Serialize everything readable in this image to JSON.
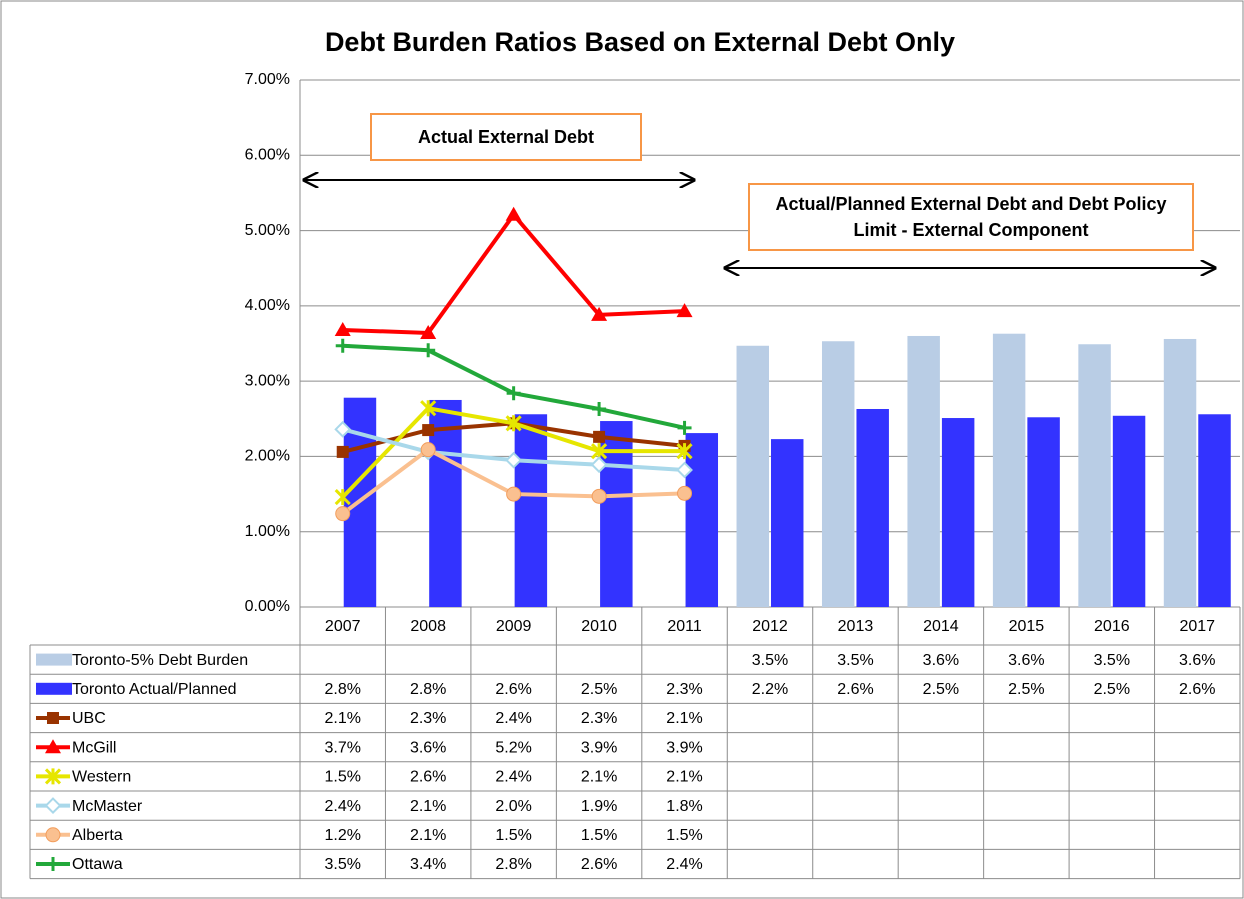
{
  "chart_data": {
    "type": "bar",
    "title": "Debt Burden Ratios Based on External Debt Only",
    "annotations": [
      "Actual External Debt",
      "Actual/Planned External Debt and Debt Policy Limit - External  Component"
    ],
    "categories": [
      "2007",
      "2008",
      "2009",
      "2010",
      "2011",
      "2012",
      "2013",
      "2014",
      "2015",
      "2016",
      "2017"
    ],
    "ylim": [
      0,
      7
    ],
    "yticks": [
      {
        "value": 0,
        "label": "0.00%"
      },
      {
        "value": 1,
        "label": "1.00%"
      },
      {
        "value": 2,
        "label": "2.00%"
      },
      {
        "value": 3,
        "label": "3.00%"
      },
      {
        "value": 4,
        "label": "4.00%"
      },
      {
        "value": 5,
        "label": "5.00%"
      },
      {
        "value": 6,
        "label": "6.00%"
      },
      {
        "value": 7,
        "label": "7.00%"
      }
    ],
    "grid": true,
    "series": [
      {
        "name": "Toronto-5% Debt Burden",
        "type": "bar",
        "color": "#b9cde5",
        "values": [
          null,
          null,
          null,
          null,
          null,
          3.47,
          3.53,
          3.6,
          3.63,
          3.49,
          3.56
        ],
        "value_labels": [
          null,
          null,
          null,
          null,
          null,
          "3.5%",
          "3.5%",
          "3.6%",
          "3.6%",
          "3.5%",
          "3.6%"
        ]
      },
      {
        "name": "Toronto Actual/Planned",
        "type": "bar",
        "color": "#3333ff",
        "values": [
          2.78,
          2.75,
          2.56,
          2.47,
          2.31,
          2.23,
          2.63,
          2.51,
          2.52,
          2.54,
          2.56
        ],
        "value_labels": [
          "2.8%",
          "2.8%",
          "2.6%",
          "2.5%",
          "2.3%",
          "2.2%",
          "2.6%",
          "2.5%",
          "2.5%",
          "2.5%",
          "2.6%"
        ]
      },
      {
        "name": "UBC",
        "type": "line",
        "marker": "square",
        "color": "#993300",
        "values": [
          2.06,
          2.35,
          2.44,
          2.26,
          2.14,
          null,
          null,
          null,
          null,
          null,
          null
        ],
        "value_labels": [
          "2.1%",
          "2.3%",
          "2.4%",
          "2.3%",
          "2.1%",
          null,
          null,
          null,
          null,
          null,
          null
        ]
      },
      {
        "name": "McGill",
        "type": "line",
        "marker": "triangle",
        "color": "#ff0000",
        "values": [
          3.68,
          3.64,
          5.21,
          3.88,
          3.93,
          null,
          null,
          null,
          null,
          null,
          null
        ],
        "value_labels": [
          "3.7%",
          "3.6%",
          "5.2%",
          "3.9%",
          "3.9%",
          null,
          null,
          null,
          null,
          null,
          null
        ]
      },
      {
        "name": "Western",
        "type": "line",
        "marker": "star",
        "color": "#e6e600",
        "values": [
          1.46,
          2.64,
          2.44,
          2.07,
          2.07,
          null,
          null,
          null,
          null,
          null,
          null
        ],
        "value_labels": [
          "1.5%",
          "2.6%",
          "2.4%",
          "2.1%",
          "2.1%",
          null,
          null,
          null,
          null,
          null,
          null
        ]
      },
      {
        "name": "McMaster",
        "type": "line",
        "marker": "diamond",
        "color": "#a9d8ea",
        "values": [
          2.36,
          2.06,
          1.95,
          1.89,
          1.82,
          null,
          null,
          null,
          null,
          null,
          null
        ],
        "value_labels": [
          "2.4%",
          "2.1%",
          "2.0%",
          "1.9%",
          "1.8%",
          null,
          null,
          null,
          null,
          null,
          null
        ]
      },
      {
        "name": "Alberta",
        "type": "line",
        "marker": "circle",
        "color": "#fac090",
        "values": [
          1.24,
          2.09,
          1.5,
          1.47,
          1.51,
          null,
          null,
          null,
          null,
          null,
          null
        ],
        "value_labels": [
          "1.2%",
          "2.1%",
          "1.5%",
          "1.5%",
          "1.5%",
          null,
          null,
          null,
          null,
          null,
          null
        ]
      },
      {
        "name": "Ottawa",
        "type": "line",
        "marker": "plus",
        "color": "#22a83a",
        "values": [
          3.47,
          3.41,
          2.84,
          2.63,
          2.38,
          null,
          null,
          null,
          null,
          null,
          null
        ],
        "value_labels": [
          "3.5%",
          "3.4%",
          "2.8%",
          "2.6%",
          "2.4%",
          null,
          null,
          null,
          null,
          null,
          null
        ]
      }
    ]
  }
}
